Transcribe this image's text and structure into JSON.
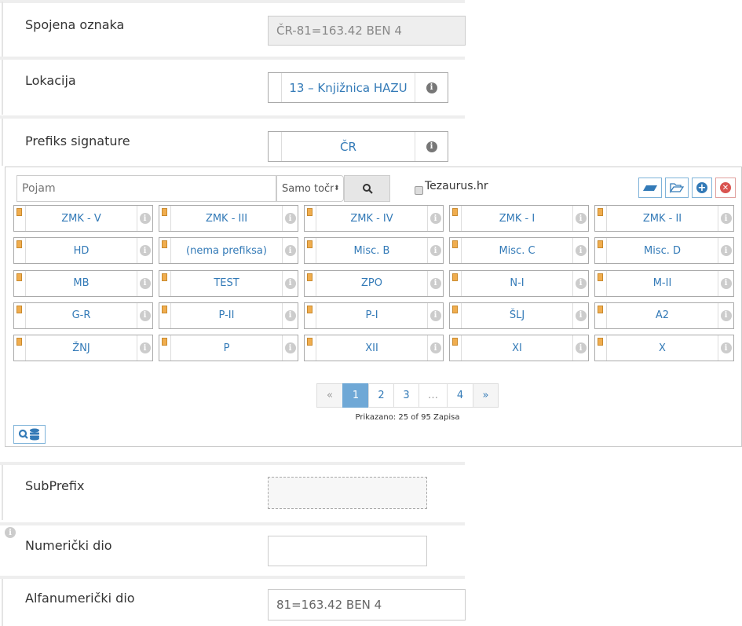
{
  "form_top": {
    "merged": {
      "label": "Spojena oznaka",
      "value": "ČR-81=163.42 BEN 4"
    },
    "location": {
      "label": "Lokacija",
      "value": "13 – Knjižnica HAZU"
    },
    "prefix": {
      "label": "Prefiks signature",
      "value": "ČR"
    }
  },
  "picker": {
    "search_placeholder": "Pojam",
    "match_select": "Samo točna",
    "thesaurus_label": "Tezaurus.hr",
    "thesaurus_checked": false,
    "items": [
      "ZMK - V",
      "ZMK - III",
      "ZMK - IV",
      "ZMK - I",
      "ZMK - II",
      "HD",
      "(nema prefiksa)",
      "Misc. B",
      "Misc. C",
      "Misc. D",
      "MB",
      "TEST",
      "ZPO",
      "N-I",
      "M-II",
      "G-R",
      "P-II",
      "P-I",
      "ŠLJ",
      "A2",
      "ŽNJ",
      "P",
      "XII",
      "XI",
      "X"
    ],
    "pagination": {
      "prev": "«",
      "pages": [
        "1",
        "2",
        "3",
        "…",
        "4"
      ],
      "next": "»",
      "active": "1"
    },
    "summary": "Prikazano: 25 of 95 Zapisa",
    "colors": {
      "marker": "#f0ad4e",
      "link": "#337ab7",
      "active_page": "#6fa8d6",
      "close": "#d9534f"
    }
  },
  "form_bottom": {
    "subprefix": {
      "label": "SubPrefix",
      "value": ""
    },
    "numeric": {
      "label": "Numerički dio",
      "value": ""
    },
    "alnum": {
      "label": "Alfanumerički dio",
      "value": "81=163.42 BEN 4"
    }
  }
}
